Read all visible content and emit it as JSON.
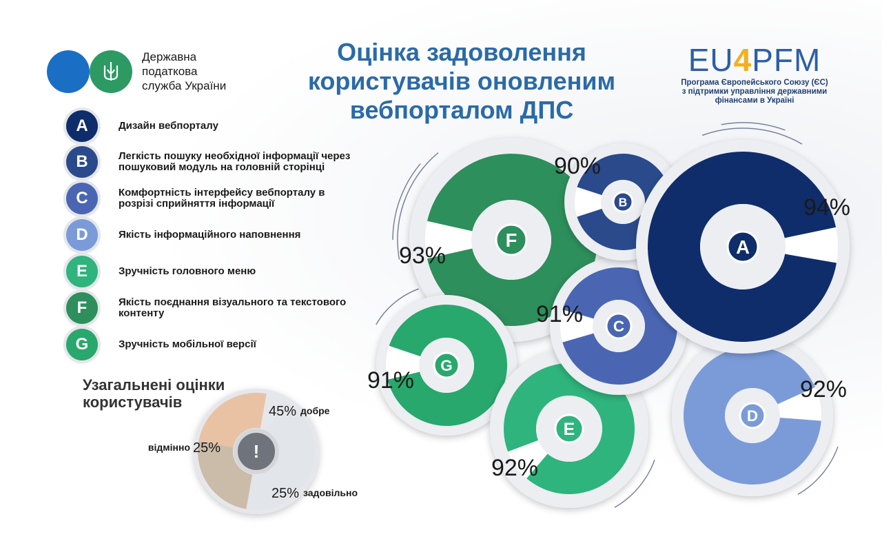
{
  "org": {
    "line1": "Державна",
    "line2": "податкова",
    "line3": "служба України"
  },
  "title": {
    "line1": "Оцінка задоволення",
    "line2": "користувачів оновленим",
    "line3": "вебпорталом ДПС"
  },
  "program": {
    "mark_a": "EU",
    "mark_b": "4",
    "mark_c": "PFM",
    "sub1": "Програма Європейського Союзу (ЄС)",
    "sub2": "з підтримки управління державними",
    "sub3": "фінансами в Україні"
  },
  "legend": [
    {
      "letter": "A",
      "text": "Дизайн вебпорталу",
      "color": "#0f2d6b"
    },
    {
      "letter": "B",
      "text": "Легкість пошуку необхідної інформації через пошуковий модуль на головній сторінці",
      "color": "#2a4a8c"
    },
    {
      "letter": "C",
      "text": "Комфортність інтерфейсу вебпорталу в розрізі сприйняття інформації",
      "color": "#4a66b3"
    },
    {
      "letter": "D",
      "text": "Якість інформаційного наповнення",
      "color": "#7b9bd8"
    },
    {
      "letter": "E",
      "text": "Зручність головного меню",
      "color": "#2eb47c"
    },
    {
      "letter": "F",
      "text": "Якість поєднання візуального та текстового контенту",
      "color": "#2d8f5c"
    },
    {
      "letter": "G",
      "text": "Зручність мобільної версії",
      "color": "#28a86c"
    }
  ],
  "summary_title": "Узагальнені оцінки користувачів",
  "chart_data": [
    {
      "type": "donut",
      "categories": [
        "A",
        "B",
        "C",
        "D",
        "E",
        "F",
        "G"
      ],
      "values": [
        94,
        90,
        91,
        92,
        92,
        93,
        91
      ],
      "labels": [
        "94%",
        "90%",
        "91%",
        "92%",
        "92%",
        "93%",
        "91%"
      ],
      "colors": [
        "#0f2d6b",
        "#2a4a8c",
        "#4a66b3",
        "#7b9bd8",
        "#2eb47c",
        "#2d8f5c",
        "#28a86c"
      ]
    },
    {
      "type": "pie",
      "categories": [
        "добре",
        "задовільно",
        "відмінно"
      ],
      "values": [
        45,
        25,
        25
      ],
      "labels": [
        "45%",
        "25%",
        "25%"
      ],
      "colors": [
        "#e2e5ea",
        "#cbbba9",
        "#e9c2a4"
      ],
      "center_symbol": "!"
    }
  ]
}
